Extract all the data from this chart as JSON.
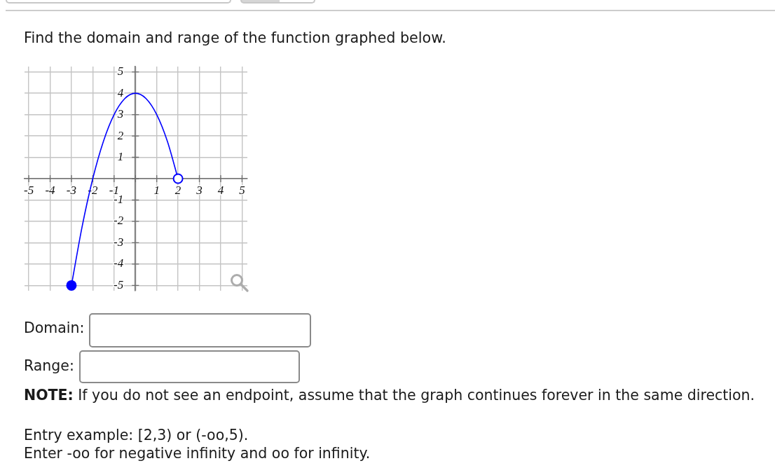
{
  "chart_data": {
    "type": "line",
    "title": "Find the domain and range of the function graphed below.",
    "annotations": [
      "Domain:",
      "Range:",
      "NOTE:",
      "If you do not see an endpoint, assume that the graph continues forever in the same direction.",
      "Entry example: [2,3) or (-oo,5).",
      "Enter -oo for negative infinity and oo for infinity."
    ],
    "xlim": [
      -5.2,
      5.25
    ],
    "ylim": [
      -5.25,
      5.25
    ],
    "xticks": [
      -5,
      -4,
      -3,
      -2,
      -1,
      {
        "value": 0,
        "label": null
      },
      1,
      2,
      3,
      4,
      5
    ],
    "yticks": [
      -5,
      -4,
      -3,
      -2,
      -1,
      {
        "value": 0,
        "label": null
      },
      1,
      2,
      3,
      4,
      5
    ],
    "grid": true,
    "series": [
      {
        "color": "#0000ff",
        "marker": "none",
        "x": [
          -3,
          -2.5,
          -2,
          -1.5,
          -1,
          -0.5,
          0,
          0.5,
          1,
          1.5,
          2
        ],
        "values": [
          -5,
          -2.25,
          0,
          1.75,
          3,
          3.75,
          4,
          3.75,
          3,
          1.75,
          0
        ]
      },
      {
        "type": "scatter",
        "color": "#0000ff",
        "colors": [
          "#0000ff",
          "#ffffff"
        ],
        "marker": "circle",
        "x": [
          -3,
          2
        ],
        "values": [
          -5,
          0
        ]
      }
    ]
  }
}
